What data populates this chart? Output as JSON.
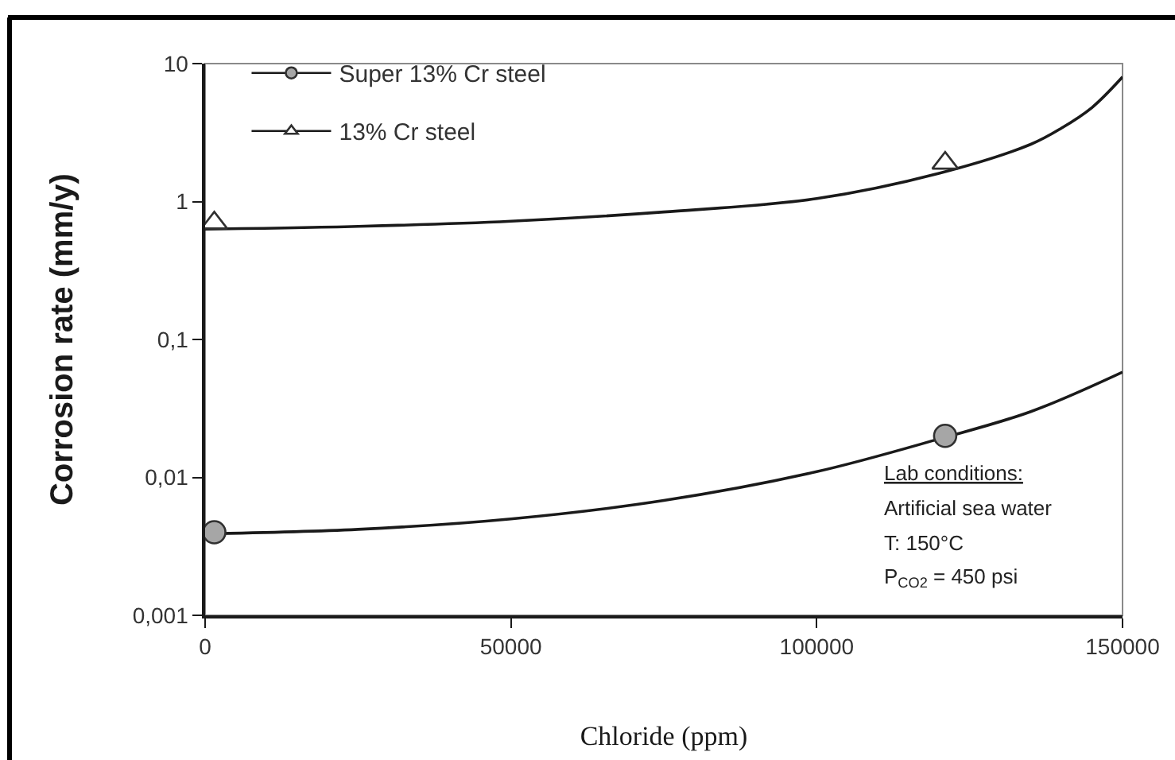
{
  "chart_data": {
    "type": "line",
    "xlabel": "Chloride (ppm)",
    "ylabel": "Corrosion rate (mm/y)",
    "xlim": [
      0,
      150000
    ],
    "xticks": [
      0,
      50000,
      100000,
      150000
    ],
    "ylim": [
      0.001,
      10
    ],
    "yticks": [
      {
        "value": 0.001,
        "label": "0,001"
      },
      {
        "value": 0.01,
        "label": "0,01"
      },
      {
        "value": 0.1,
        "label": "0,1"
      },
      1,
      10
    ],
    "log": "y",
    "legend": "top left",
    "annotations": [
      "Lab conditions:",
      "Artificial sea water",
      "T: 150°C",
      "P$_{CO2}$ = 450 psi"
    ],
    "series": [
      {
        "name": "Super 13% Cr steel",
        "type": "scatter",
        "marker": "circle",
        "color": "#a6a6a6",
        "x": [
          1500,
          121000
        ],
        "values": [
          0.004,
          0.02
        ]
      },
      {
        "color": "#1a1a1a",
        "x": [
          0,
          25000,
          50000,
          75000,
          100000,
          120000,
          135000,
          150000
        ],
        "values": [
          0.0039,
          0.0042,
          0.005,
          0.0068,
          0.011,
          0.019,
          0.03,
          0.058
        ]
      },
      {
        "name": "13% Cr steel",
        "type": "scatter",
        "marker": "triangle",
        "color": "#ffffff",
        "x": [
          1500,
          121000
        ],
        "values": [
          0.7,
          1.9
        ]
      },
      {
        "color": "#1a1a1a",
        "x": [
          0,
          25000,
          50000,
          75000,
          100000,
          120000,
          135000,
          140000,
          145000,
          150000
        ],
        "values": [
          0.63,
          0.66,
          0.72,
          0.84,
          1.05,
          1.6,
          2.6,
          3.4,
          4.8,
          8
        ]
      }
    ]
  }
}
